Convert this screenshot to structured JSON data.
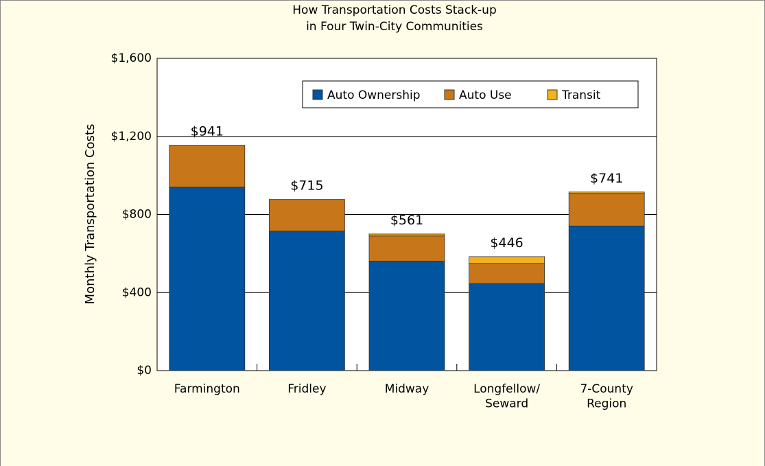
{
  "chart_data": {
    "type": "stacked_bar",
    "title": "How Transportation Costs Stack-up\nin Four Twin-City Communities",
    "y_label": "Monthly Transportation Costs",
    "categories": [
      "Farmington",
      "Fridley",
      "Midway",
      "Longfellow/\nSeward",
      "7-County\nRegion"
    ],
    "series": [
      {
        "name": "Auto Ownership",
        "color": "#0054a0",
        "values": [
          941,
          715,
          561,
          446,
          741
        ],
        "value_labels": [
          "$941",
          "$715",
          "$561",
          "$446",
          "$741"
        ]
      },
      {
        "name": "Auto Use",
        "color": "#c8761a",
        "values": [
          214,
          162,
          129,
          103,
          167
        ]
      },
      {
        "name": "Transit",
        "color": "#f5b21e",
        "values": [
          0,
          0,
          10,
          35,
          7
        ]
      }
    ],
    "ylim": [
      0,
      1600
    ],
    "yticks": [
      {
        "value": 0,
        "label": "$0"
      },
      {
        "value": 400,
        "label": "$400"
      },
      {
        "value": 800,
        "label": "$800"
      },
      {
        "value": 1200,
        "label": "$1,200"
      },
      {
        "value": 1600,
        "label": "$1,600"
      }
    ],
    "grid": true,
    "legend": "upper right"
  }
}
